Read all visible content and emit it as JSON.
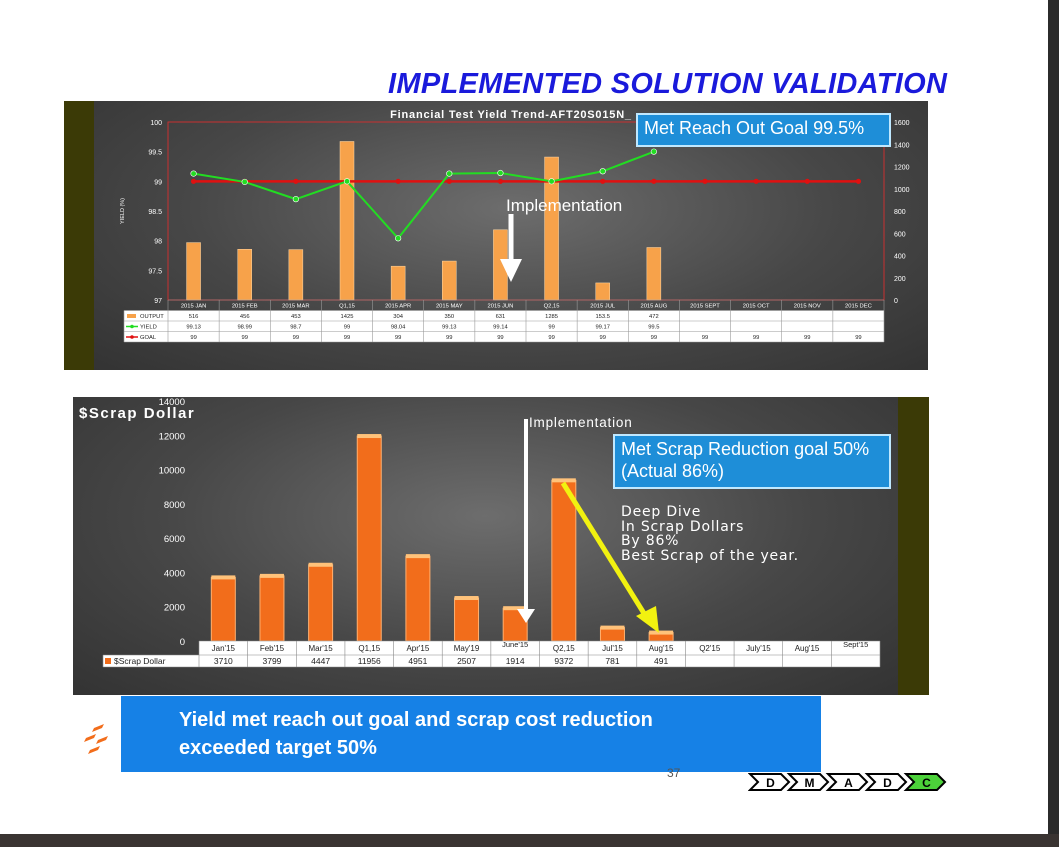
{
  "slide": {
    "title": "IMPLEMENTED SOLUTION VALIDATION",
    "summary_line1": "Yield met reach out goal and scrap cost reduction",
    "summary_line2": "exceeded target 50%",
    "page_number": "37",
    "dmaic_steps": [
      "D",
      "M",
      "A",
      "D",
      "C"
    ],
    "dmaic_active": "C",
    "colors": {
      "title": "#1a1adb",
      "callout": "#1e8ed8",
      "summary_box": "#1681e6",
      "olive_frame": "#3b3a06",
      "bar_fill": "#f7a24a",
      "scrap_bar": "#f26d1b",
      "yield_line": "#22dd22",
      "goal_line": "#e01010",
      "arrow_yellow": "#f2f210",
      "dmaic_active": "#4cd23a"
    },
    "icons": [
      "arrow-down-icon",
      "arrow-diagonal-icon",
      "company-logo-icon",
      "chevron-arrow-icon"
    ]
  },
  "annotations": {
    "callout1": "Met Reach Out Goal 99.5%",
    "implementation1": "Implementation",
    "implementation2": "Implementation",
    "callout2": "Met Scrap Reduction goal 50% (Actual 86%)",
    "deep_dive": "Deep Dive\nIn Scrap Dollars\nBy 86%\nBest Scrap of the year."
  },
  "chart_data": [
    {
      "type": "bar",
      "title": "Financial Test Yield Trend-AFT20S015N_",
      "ylabel": "YIELD (%)",
      "ylim": [
        97,
        100
      ],
      "y_ticks": [
        "100",
        "99.5",
        "99",
        "98.5",
        "98",
        "97.5",
        "97"
      ],
      "y2lim": [
        0,
        1600
      ],
      "y2_ticks": [
        "1600",
        "1400",
        "1200",
        "1000",
        "800",
        "600",
        "400",
        "200",
        "0"
      ],
      "categories": [
        "2015 JAN",
        "2015 FEB",
        "2015 MAR",
        "Q1,15",
        "2015 APR",
        "2015 MAY",
        "2015 JUN",
        "Q2,15",
        "2015 JUL",
        "2015 AUG",
        "2015 SEPT",
        "2015 OCT",
        "2015 NOV",
        "2015 DEC"
      ],
      "series": [
        {
          "name": "OUTPUT",
          "kind": "bar",
          "axis": "right",
          "values": [
            516,
            456,
            453,
            1425,
            304,
            350,
            631,
            1285,
            153.5,
            472,
            null,
            null,
            null,
            null
          ],
          "labels": [
            "516",
            "456",
            "453",
            "1425",
            "304",
            "350",
            "631",
            "1285",
            "153.5",
            "472",
            "",
            "",
            "",
            ""
          ]
        },
        {
          "name": "YIELD",
          "kind": "line",
          "axis": "left",
          "values": [
            99.13,
            98.99,
            98.7,
            99,
            98.04,
            99.13,
            99.14,
            99,
            99.17,
            99.5,
            null,
            null,
            null,
            null
          ],
          "labels": [
            "99.13",
            "98.99",
            "98.7",
            "99",
            "98.04",
            "99.13",
            "99.14",
            "99",
            "99.17",
            "99.5",
            "",
            "",
            "",
            ""
          ]
        },
        {
          "name": "GOAL",
          "kind": "line",
          "axis": "left",
          "values": [
            99,
            99,
            99,
            99,
            99,
            99,
            99,
            99,
            99,
            99,
            99,
            99,
            99,
            99
          ],
          "labels": [
            "99",
            "99",
            "99",
            "99",
            "99",
            "99",
            "99",
            "99",
            "99",
            "99",
            "99",
            "99",
            "99",
            "99"
          ]
        }
      ],
      "legend": "data-table",
      "grid": false
    },
    {
      "type": "bar",
      "title": "$Scrap Dollar",
      "ylim": [
        0,
        14000
      ],
      "y_ticks": [
        "14000",
        "12000",
        "10000",
        "8000",
        "6000",
        "4000",
        "2000",
        "0"
      ],
      "categories": [
        "Jan'15",
        "Feb'15",
        "Mar'15",
        "Q1,15",
        "Apr'15",
        "May'19",
        "June'1 5",
        "Q2,15",
        "Jul'15",
        "Aug'15",
        "Q2'15",
        "July'15",
        "Aug'15",
        "Sept'1 5"
      ],
      "series": [
        {
          "name": "$Scrap Dollar",
          "values": [
            3710,
            3799,
            4447,
            11956,
            4951,
            2507,
            1914,
            9372,
            781,
            491,
            null,
            null,
            null,
            null
          ],
          "labels": [
            "3710",
            "3799",
            "4447",
            "11956",
            "4951",
            "2507",
            "1914",
            "9372",
            "781",
            "491",
            "",
            "",
            "",
            ""
          ]
        }
      ],
      "legend": "data-table",
      "grid": false
    }
  ]
}
